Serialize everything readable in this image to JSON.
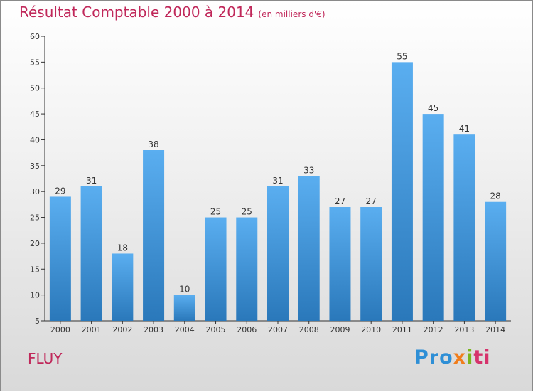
{
  "header": {
    "title": "Résultat Comptable 2000 à 2014",
    "unit": "(en milliers d'€)"
  },
  "commune": "FLUY",
  "logo": {
    "text": "Proxiti",
    "letters": [
      "Pro",
      "x",
      "i",
      "ti"
    ]
  },
  "colors": {
    "bar_light": "#5aaef0",
    "bar_dark": "#2a78ba",
    "title": "#c0285a"
  },
  "chart_data": {
    "type": "bar",
    "title": "Résultat Comptable 2000 à 2014",
    "xlabel": "",
    "ylabel": "(en milliers d'€)",
    "ylim": [
      5,
      60
    ],
    "yticks": [
      5,
      10,
      15,
      20,
      25,
      30,
      35,
      40,
      45,
      50,
      55,
      60
    ],
    "grid": false,
    "categories": [
      "2000",
      "2001",
      "2002",
      "2003",
      "2004",
      "2005",
      "2006",
      "2007",
      "2008",
      "2009",
      "2010",
      "2011",
      "2012",
      "2013",
      "2014"
    ],
    "values": [
      29,
      31,
      18,
      38,
      10,
      25,
      25,
      31,
      33,
      27,
      27,
      55,
      45,
      41,
      28
    ]
  }
}
